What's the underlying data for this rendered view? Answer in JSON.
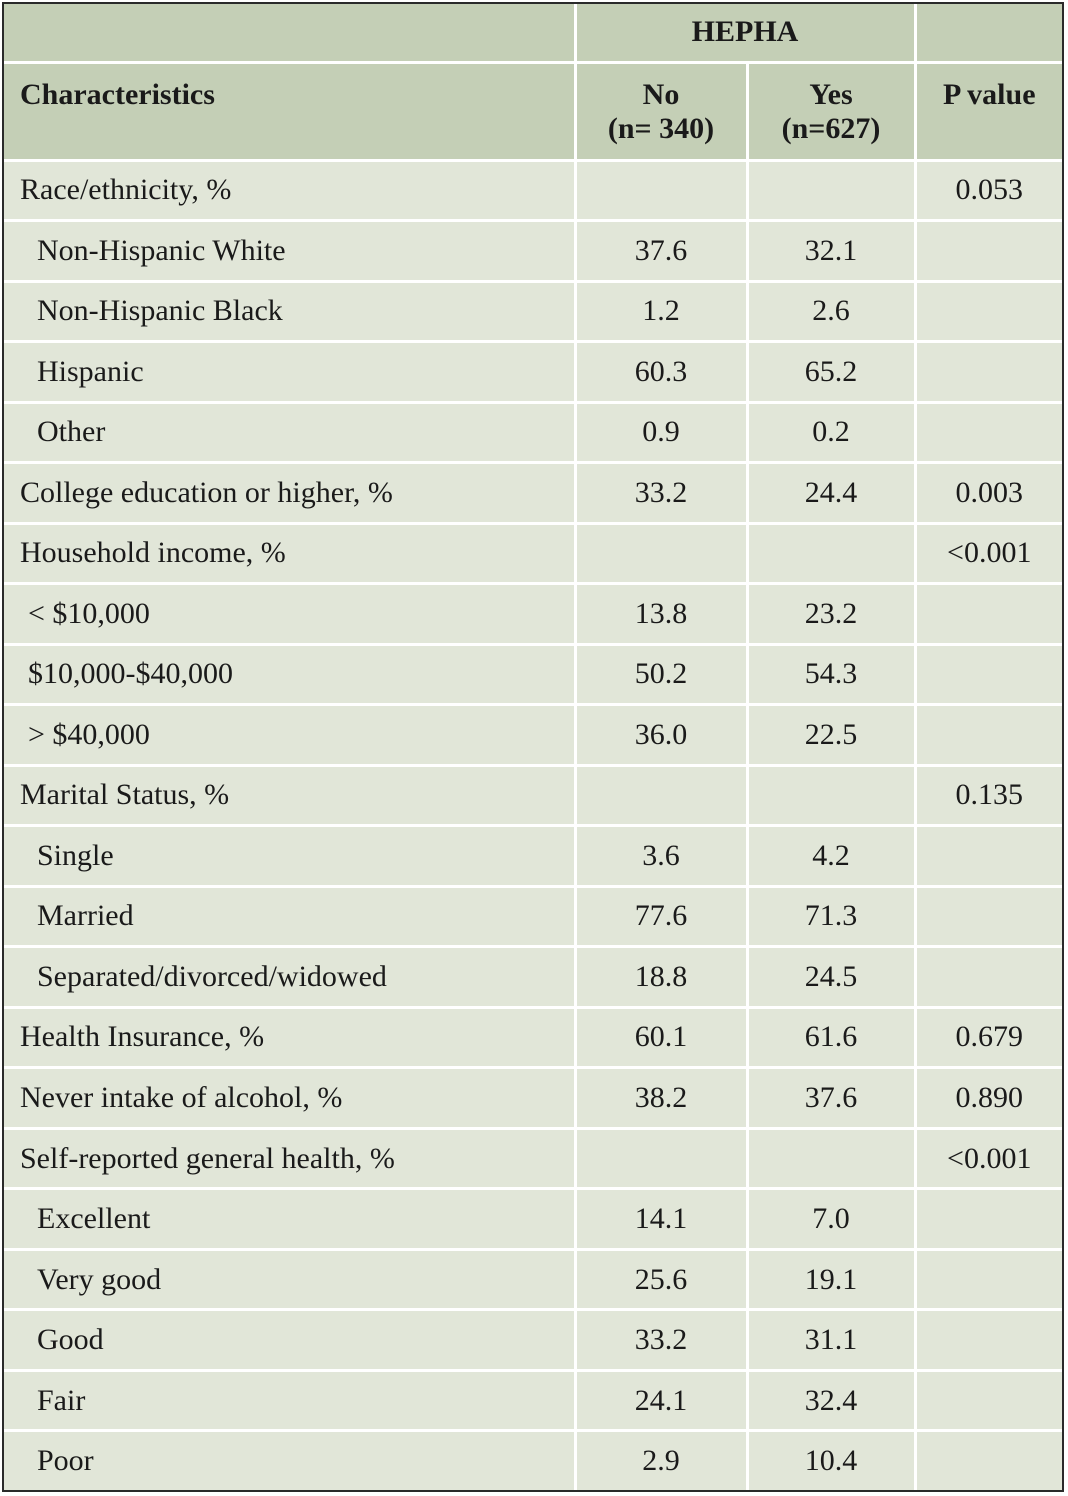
{
  "header": {
    "group_label": "HEPHA",
    "characteristics_label": "Characteristics",
    "no_label": "No",
    "no_n": "(n= 340)",
    "yes_label": "Yes",
    "yes_n": "(n=627)",
    "pvalue_label": "P value"
  },
  "rows": [
    {
      "label": "Race/ethnicity, %",
      "no": "",
      "yes": "",
      "p": "0.053",
      "indent": 0
    },
    {
      "label": "Non-Hispanic White",
      "no": "37.6",
      "yes": "32.1",
      "p": "",
      "indent": 1
    },
    {
      "label": "Non-Hispanic Black",
      "no": "1.2",
      "yes": "2.6",
      "p": "",
      "indent": 1
    },
    {
      "label": "Hispanic",
      "no": "60.3",
      "yes": "65.2",
      "p": "",
      "indent": 1
    },
    {
      "label": "Other",
      "no": "0.9",
      "yes": "0.2",
      "p": "",
      "indent": 1
    },
    {
      "label": "College education or higher, %",
      "no": "33.2",
      "yes": "24.4",
      "p": "0.003",
      "indent": 0
    },
    {
      "label": "Household income, %",
      "no": "",
      "yes": "",
      "p": "<0.001",
      "indent": 0
    },
    {
      "label": "< $10,000",
      "no": "13.8",
      "yes": "23.2",
      "p": "",
      "indent": 2
    },
    {
      "label": "$10,000-$40,000",
      "no": "50.2",
      "yes": "54.3",
      "p": "",
      "indent": 2
    },
    {
      "label": "> $40,000",
      "no": "36.0",
      "yes": "22.5",
      "p": "",
      "indent": 2
    },
    {
      "label": "Marital Status, %",
      "no": "",
      "yes": "",
      "p": "0.135",
      "indent": 0
    },
    {
      "label": "Single",
      "no": "3.6",
      "yes": "4.2",
      "p": "",
      "indent": 1
    },
    {
      "label": "Married",
      "no": "77.6",
      "yes": "71.3",
      "p": "",
      "indent": 1
    },
    {
      "label": "Separated/divorced/widowed",
      "no": "18.8",
      "yes": "24.5",
      "p": "",
      "indent": 1
    },
    {
      "label": "Health Insurance, %",
      "no": "60.1",
      "yes": "61.6",
      "p": "0.679",
      "indent": 0
    },
    {
      "label": "Never intake of alcohol, %",
      "no": "38.2",
      "yes": "37.6",
      "p": "0.890",
      "indent": 0
    },
    {
      "label": "Self-reported general health, %",
      "no": "",
      "yes": "",
      "p": "<0.001",
      "indent": 0
    },
    {
      "label": "Excellent",
      "no": "14.1",
      "yes": "7.0",
      "p": "",
      "indent": 1
    },
    {
      "label": "Very good",
      "no": "25.6",
      "yes": "19.1",
      "p": "",
      "indent": 1
    },
    {
      "label": "Good",
      "no": "33.2",
      "yes": "31.1",
      "p": "",
      "indent": 1
    },
    {
      "label": "Fair",
      "no": "24.1",
      "yes": "32.4",
      "p": "",
      "indent": 1
    },
    {
      "label": "Poor",
      "no": "2.9",
      "yes": "10.4",
      "p": "",
      "indent": 1
    }
  ]
}
